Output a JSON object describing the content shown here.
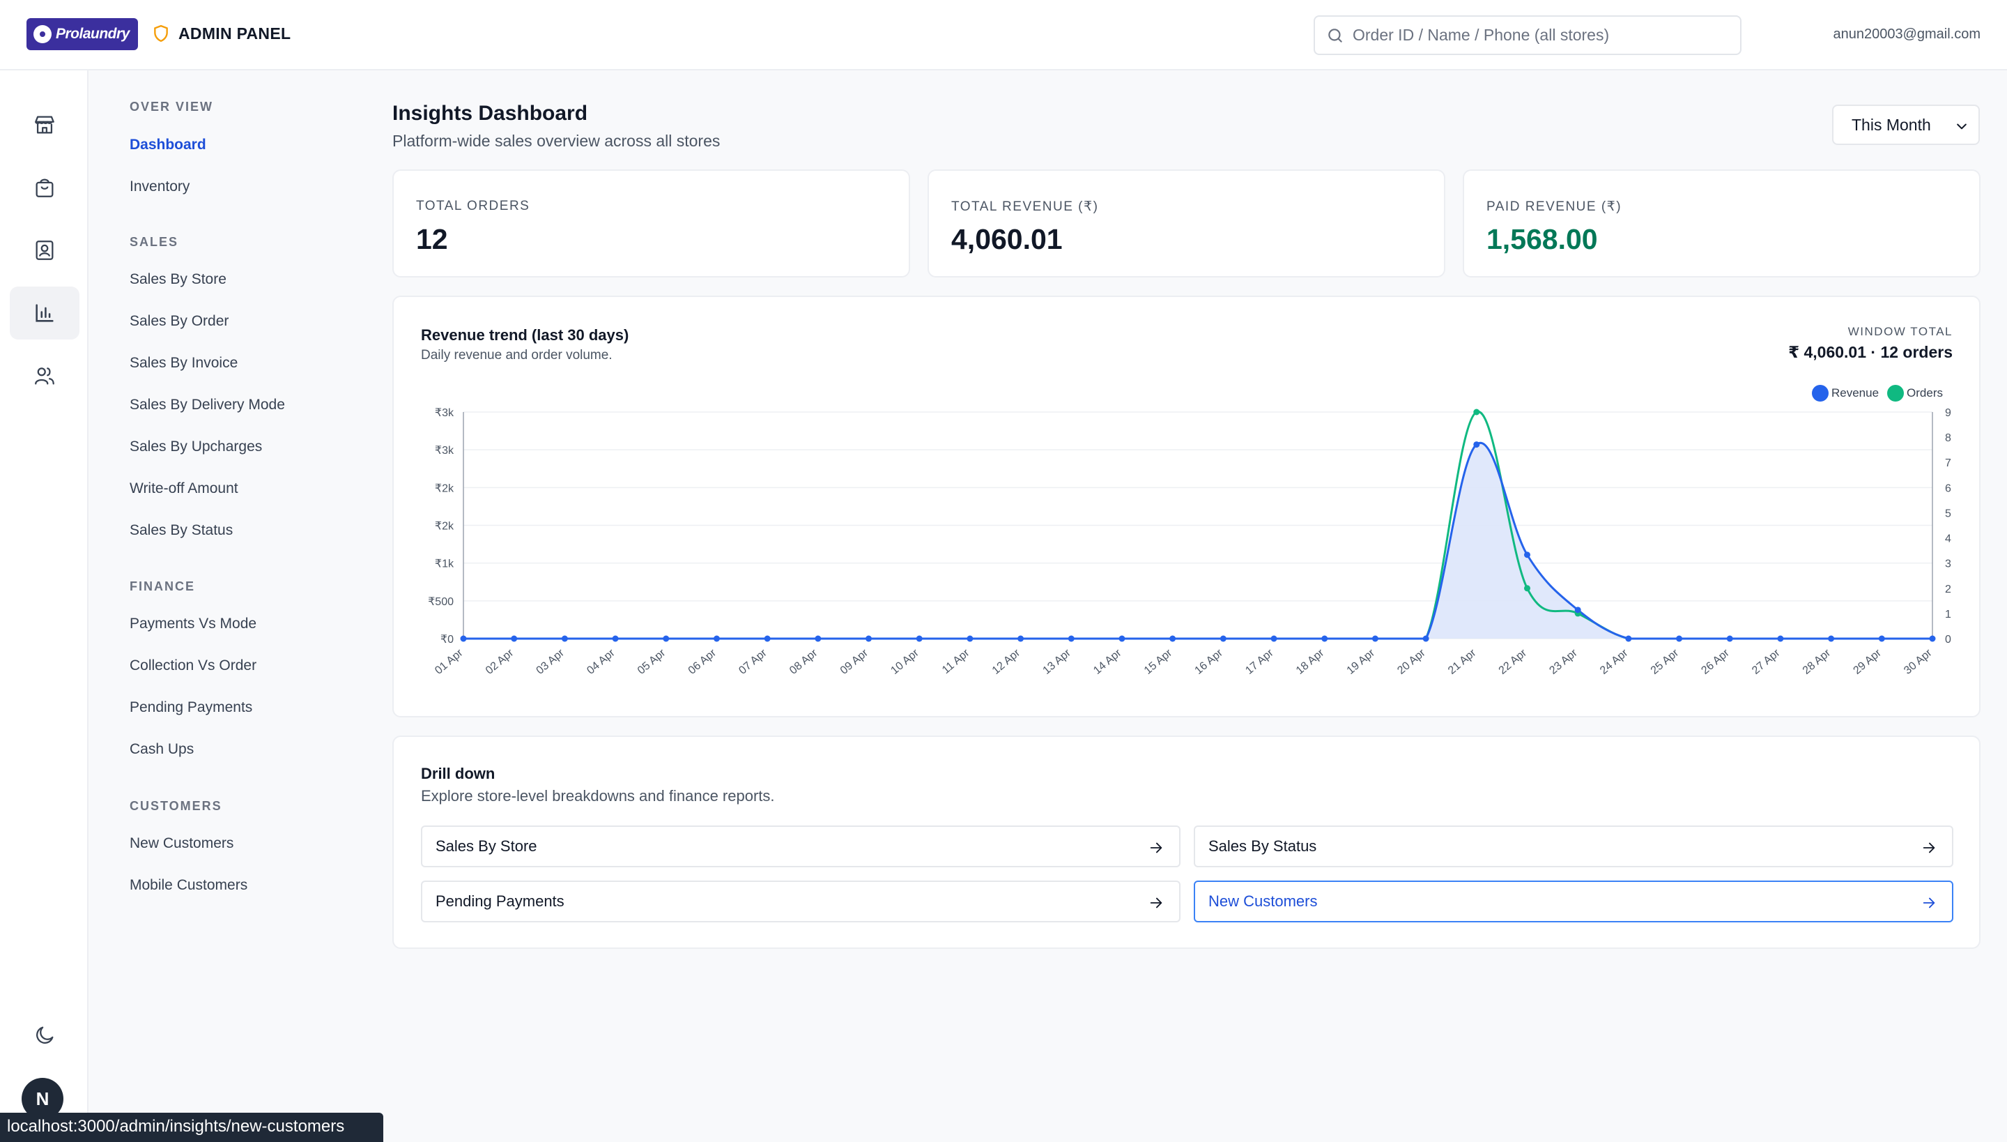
{
  "header": {
    "logo_text": "Prolaundry",
    "admin_label": "ADMIN PANEL",
    "search_placeholder": "Order ID / Name / Phone (all stores)",
    "user_email": "anun20003@gmail.com"
  },
  "rail": {
    "icons": [
      "store-icon",
      "shopping-bag-icon",
      "contact-icon",
      "bar-chart-icon",
      "users-icon"
    ],
    "active": "bar-chart-icon",
    "bottom_icon": "moon-icon",
    "avatar_letter": "N"
  },
  "nav": {
    "sections": [
      {
        "title": "OVER VIEW",
        "items": [
          "Dashboard",
          "Inventory"
        ]
      },
      {
        "title": "SALES",
        "items": [
          "Sales By Store",
          "Sales By Order",
          "Sales By Invoice",
          "Sales By Delivery Mode",
          "Sales By Upcharges",
          "Write-off Amount",
          "Sales By Status"
        ]
      },
      {
        "title": "FINANCE",
        "items": [
          "Payments Vs Mode",
          "Collection Vs Order",
          "Pending Payments",
          "Cash Ups"
        ]
      },
      {
        "title": "CUSTOMERS",
        "items": [
          "New Customers",
          "Mobile Customers"
        ]
      }
    ],
    "active_item": "Dashboard"
  },
  "main": {
    "title": "Insights Dashboard",
    "subtitle": "Platform-wide sales overview across all stores",
    "period_select": "This Month",
    "stats": [
      {
        "label": "TOTAL ORDERS",
        "value": "12"
      },
      {
        "label": "TOTAL REVENUE (₹)",
        "value": "4,060.01"
      },
      {
        "label": "PAID REVENUE (₹)",
        "value": "1,568.00"
      }
    ]
  },
  "chart_panel": {
    "title": "Revenue trend (last 30 days)",
    "subtitle": "Daily revenue and order volume.",
    "window_label": "WINDOW TOTAL",
    "window_value": "₹ 4,060.01 · 12 orders"
  },
  "chart_data": {
    "type": "line",
    "x": [
      "01 Apr",
      "02 Apr",
      "03 Apr",
      "04 Apr",
      "05 Apr",
      "06 Apr",
      "07 Apr",
      "08 Apr",
      "09 Apr",
      "10 Apr",
      "11 Apr",
      "12 Apr",
      "13 Apr",
      "14 Apr",
      "15 Apr",
      "16 Apr",
      "17 Apr",
      "18 Apr",
      "19 Apr",
      "20 Apr",
      "21 Apr",
      "22 Apr",
      "23 Apr",
      "24 Apr",
      "25 Apr",
      "26 Apr",
      "27 Apr",
      "28 Apr",
      "29 Apr",
      "30 Apr"
    ],
    "series": [
      {
        "name": "Revenue",
        "axis": "left",
        "color": "#2563eb",
        "fill": "#dde5fb",
        "values": [
          0,
          0,
          0,
          0,
          0,
          0,
          0,
          0,
          0,
          0,
          0,
          0,
          0,
          0,
          0,
          0,
          0,
          0,
          0,
          0,
          2570,
          1110,
          380,
          0,
          0,
          0,
          0,
          0,
          0,
          0
        ]
      },
      {
        "name": "Orders",
        "axis": "right",
        "color": "#10b981",
        "values": [
          0,
          0,
          0,
          0,
          0,
          0,
          0,
          0,
          0,
          0,
          0,
          0,
          0,
          0,
          0,
          0,
          0,
          0,
          0,
          0,
          9,
          2,
          1,
          0,
          0,
          0,
          0,
          0,
          0,
          0
        ]
      }
    ],
    "y_left": {
      "ticks": [
        "₹0",
        "₹500",
        "₹1k",
        "₹2k",
        "₹2k",
        "₹3k",
        "₹3k"
      ],
      "max": 3000
    },
    "y_right": {
      "ticks": [
        "0",
        "1",
        "2",
        "3",
        "4",
        "5",
        "6",
        "7",
        "8",
        "9"
      ],
      "max": 9
    },
    "legend_position": "top-right",
    "grid": true
  },
  "drill": {
    "title": "Drill down",
    "subtitle": "Explore store-level breakdowns and finance reports.",
    "links": [
      "Sales By Store",
      "Sales By Status",
      "Pending Payments",
      "New Customers"
    ],
    "highlighted": "New Customers"
  },
  "status_bar": {
    "url": "localhost:3000/admin/insights/new-customers"
  }
}
